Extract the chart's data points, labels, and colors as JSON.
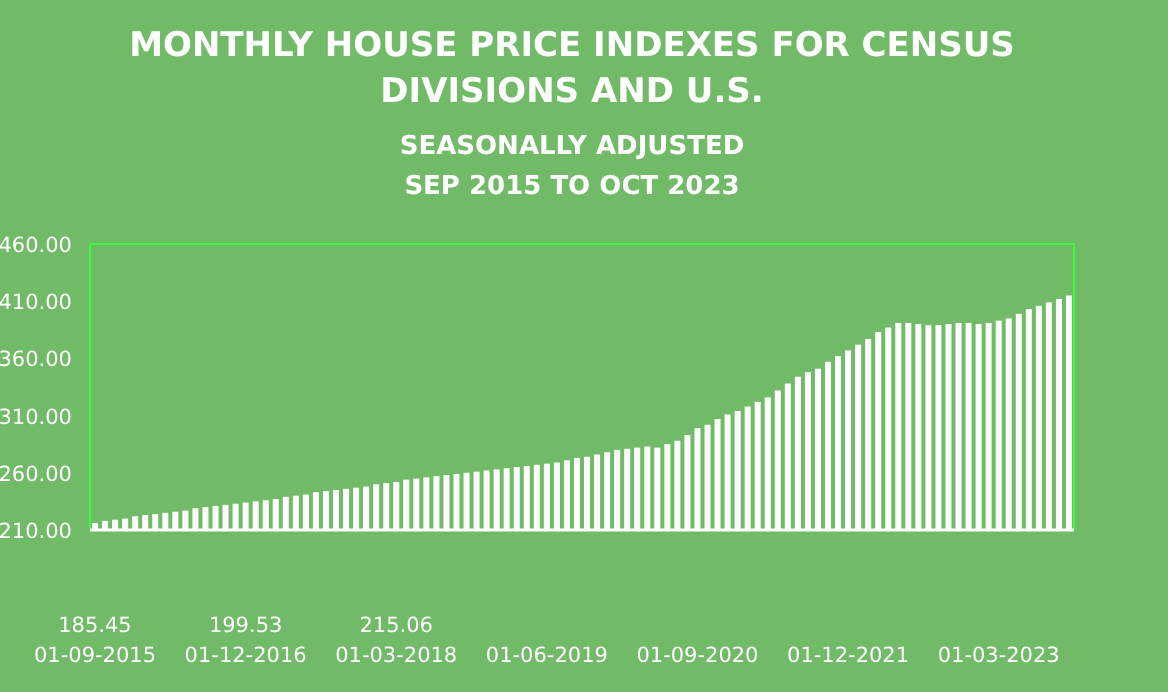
{
  "chart_data": {
    "type": "bar",
    "title": "MONTHLY HOUSE PRICE INDEXES FOR CENSUS DIVISIONS AND U.S.",
    "subtitle": "SEASONALLY ADJUSTED\nSEP 2015 TO OCT 2023",
    "categories": [
      "01-09-2015",
      null,
      null,
      null,
      null,
      null,
      null,
      null,
      null,
      null,
      null,
      null,
      null,
      null,
      null,
      "01-12-2016",
      null,
      null,
      null,
      null,
      null,
      null,
      null,
      null,
      null,
      null,
      null,
      null,
      null,
      null,
      "01-03-2018",
      null,
      null,
      null,
      null,
      null,
      null,
      null,
      null,
      null,
      null,
      null,
      null,
      null,
      null,
      "01-06-2019",
      null,
      null,
      null,
      null,
      null,
      null,
      null,
      null,
      null,
      null,
      null,
      null,
      null,
      null,
      "01-09-2020",
      null,
      null,
      null,
      null,
      null,
      null,
      null,
      null,
      null,
      null,
      null,
      null,
      null,
      null,
      "01-12-2021",
      null,
      null,
      null,
      null,
      null,
      null,
      null,
      null,
      null,
      null,
      null,
      null,
      null,
      null,
      "01-03-2023",
      null,
      null,
      null,
      null,
      null,
      null,
      null
    ],
    "values": [
      216,
      218,
      219,
      220,
      222,
      223,
      224,
      225,
      226,
      227,
      229,
      230,
      231,
      232,
      233,
      234,
      235,
      236,
      237,
      239,
      240,
      241,
      243,
      244,
      245,
      246,
      247,
      248,
      250,
      251,
      252,
      254,
      255,
      256,
      257,
      258,
      259,
      260,
      261,
      262,
      263,
      264,
      265,
      266,
      267,
      268,
      269,
      271,
      273,
      274,
      276,
      278,
      280,
      281,
      282,
      283,
      282,
      285,
      288,
      293,
      299,
      302,
      307,
      311,
      314,
      318,
      322,
      326,
      332,
      338,
      344,
      348,
      351,
      357,
      362,
      367,
      372,
      377,
      383,
      387,
      391,
      391,
      390,
      389,
      389,
      390,
      391,
      391,
      390,
      391,
      393,
      395,
      399,
      403,
      406,
      409,
      412,
      415
    ],
    "color": "#ffffff",
    "ylim": [
      210,
      460
    ],
    "yticks": [
      {
        "value": 210,
        "label": "210.00"
      },
      {
        "value": 260,
        "label": "260.00"
      },
      {
        "value": 310,
        "label": "310.00"
      },
      {
        "value": 360,
        "label": "360.00"
      },
      {
        "value": 410,
        "label": "410.00"
      },
      {
        "value": 460,
        "label": "460.00"
      }
    ],
    "annotations": [
      "185.45",
      "199.53",
      "215.06"
    ],
    "grid": false
  }
}
